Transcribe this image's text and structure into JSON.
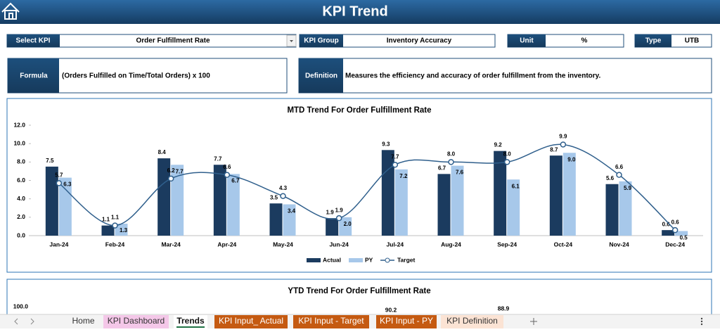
{
  "header": {
    "title": "KPI Trend"
  },
  "fields": {
    "select_kpi": {
      "label": "Select KPI",
      "value": "Order Fulfillment Rate"
    },
    "kpi_group": {
      "label": "KPI Group",
      "value": "Inventory Accuracy"
    },
    "unit": {
      "label": "Unit",
      "value": "%"
    },
    "type": {
      "label": "Type",
      "value": "UTB"
    },
    "formula": {
      "label": "Formula",
      "value": "(Orders Fulfilled on Time/Total Orders) x 100"
    },
    "definition": {
      "label": "Definition",
      "value": "Measures the efficiency and accuracy of order fulfillment from the inventory."
    }
  },
  "chart_data": {
    "type": "bar",
    "title": "MTD Trend For Order Fulfillment Rate",
    "categories": [
      "Jan-24",
      "Feb-24",
      "Mar-24",
      "Apr-24",
      "May-24",
      "Jun-24",
      "Jul-24",
      "Aug-24",
      "Sep-24",
      "Oct-24",
      "Nov-24",
      "Dec-24"
    ],
    "series": [
      {
        "name": "Actual",
        "type": "bar",
        "color": "#1b3b5f",
        "values": [
          7.5,
          1.1,
          8.4,
          7.7,
          3.5,
          1.9,
          9.3,
          6.7,
          9.2,
          8.7,
          5.6,
          0.6
        ],
        "value_labels": [
          "7.5",
          "1.1",
          "8.4",
          "7.7",
          "3.5",
          "1.9",
          "9.3",
          "6.7",
          "9.2",
          "8.7",
          "5.6",
          "0.6"
        ]
      },
      {
        "name": "PY",
        "type": "bar",
        "color": "#a7c8ea",
        "values": [
          6.3,
          1.3,
          7.7,
          6.7,
          3.4,
          2.0,
          7.2,
          7.6,
          6.1,
          9.0,
          5.9,
          0.5
        ],
        "value_labels": [
          "6.3",
          "1.3",
          "7.7",
          "6.7",
          "3.4",
          "2.0",
          "7.2",
          "7.6",
          "6.1",
          "9.0",
          "5.9",
          "0.5"
        ]
      },
      {
        "name": "Target",
        "type": "line",
        "color": "#2f5f8c",
        "values": [
          5.7,
          1.1,
          6.2,
          6.6,
          4.3,
          1.9,
          7.7,
          8.0,
          8.0,
          9.9,
          6.6,
          0.6
        ],
        "value_labels": [
          "5.7",
          "1.1",
          "6.2",
          "6.6",
          "4.3",
          "1.9",
          "7.7",
          "8.0",
          "8.0",
          "9.9",
          "6.6",
          "0.6"
        ]
      }
    ],
    "ylim": [
      0,
      12
    ],
    "yticks": [
      {
        "value": 0,
        "label": "0.0"
      },
      {
        "value": 2,
        "label": "2.0"
      },
      {
        "value": 4,
        "label": "4.0"
      },
      {
        "value": 6,
        "label": "6.0"
      },
      {
        "value": 8,
        "label": "8.0"
      },
      {
        "value": 10,
        "label": "10.0"
      },
      {
        "value": 12,
        "label": "12.0"
      }
    ],
    "legend": "bottom"
  },
  "ytd_chart": {
    "title": "YTD Trend For Order Fulfillment Rate",
    "top_tick": "100.0",
    "visible_labels": [
      "90.2",
      "88.9"
    ]
  },
  "tabs": [
    "Home",
    "KPI Dashboard",
    "Trends",
    "KPI Input_ Actual",
    "KPI Input - Target",
    "KPI Input - PY",
    "KPI Definition"
  ]
}
